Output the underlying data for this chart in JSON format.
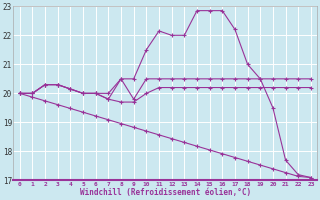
{
  "background_color": "#cce8f0",
  "grid_color": "#ffffff",
  "line_color": "#993399",
  "xlabel": "Windchill (Refroidissement éolien,°C)",
  "xlim": [
    -0.5,
    23.5
  ],
  "ylim": [
    17,
    23
  ],
  "yticks": [
    17,
    18,
    19,
    20,
    21,
    22,
    23
  ],
  "xticks": [
    0,
    1,
    2,
    3,
    4,
    5,
    6,
    7,
    8,
    9,
    10,
    11,
    12,
    13,
    14,
    15,
    16,
    17,
    18,
    19,
    20,
    21,
    22,
    23
  ],
  "lines": [
    {
      "x": [
        0,
        1,
        2,
        3,
        4,
        5,
        6,
        7,
        8,
        9,
        10,
        11,
        12,
        13,
        14,
        15,
        16,
        17,
        18,
        19,
        20,
        21,
        22,
        23
      ],
      "y": [
        20.0,
        20.0,
        20.3,
        20.3,
        20.15,
        20.0,
        20.0,
        20.0,
        20.5,
        20.5,
        21.5,
        22.15,
        22.0,
        22.0,
        22.85,
        22.85,
        22.85,
        22.2,
        21.0,
        20.5,
        20.5,
        20.5,
        20.5,
        20.5
      ]
    },
    {
      "x": [
        0,
        1,
        2,
        3,
        4,
        5,
        6,
        7,
        8,
        9,
        10,
        11,
        12,
        13,
        14,
        15,
        16,
        17,
        18,
        19,
        20,
        21,
        22,
        23
      ],
      "y": [
        20.0,
        20.0,
        20.3,
        20.3,
        20.15,
        20.0,
        20.0,
        19.8,
        20.5,
        19.8,
        20.5,
        20.5,
        20.5,
        20.5,
        20.5,
        20.5,
        20.5,
        20.5,
        20.5,
        20.5,
        19.5,
        17.7,
        17.2,
        17.1
      ]
    },
    {
      "x": [
        0,
        1,
        2,
        3,
        4,
        5,
        6,
        7,
        8,
        9,
        10,
        11,
        12,
        13,
        14,
        15,
        16,
        17,
        18,
        19,
        20,
        21,
        22,
        23
      ],
      "y": [
        20.0,
        20.0,
        20.3,
        20.3,
        20.15,
        20.0,
        20.0,
        19.8,
        19.7,
        19.7,
        20.0,
        20.2,
        20.2,
        20.2,
        20.2,
        20.2,
        20.2,
        20.2,
        20.2,
        20.2,
        20.2,
        20.2,
        20.2,
        20.2
      ]
    },
    {
      "x": [
        0,
        1,
        2,
        3,
        4,
        5,
        6,
        7,
        8,
        9,
        10,
        11,
        12,
        13,
        14,
        15,
        16,
        17,
        18,
        19,
        20,
        21,
        22,
        23
      ],
      "y": [
        20.0,
        19.87,
        19.74,
        19.61,
        19.48,
        19.35,
        19.22,
        19.09,
        18.96,
        18.83,
        18.7,
        18.57,
        18.44,
        18.31,
        18.18,
        18.05,
        17.92,
        17.79,
        17.66,
        17.53,
        17.4,
        17.27,
        17.14,
        17.1
      ]
    }
  ]
}
